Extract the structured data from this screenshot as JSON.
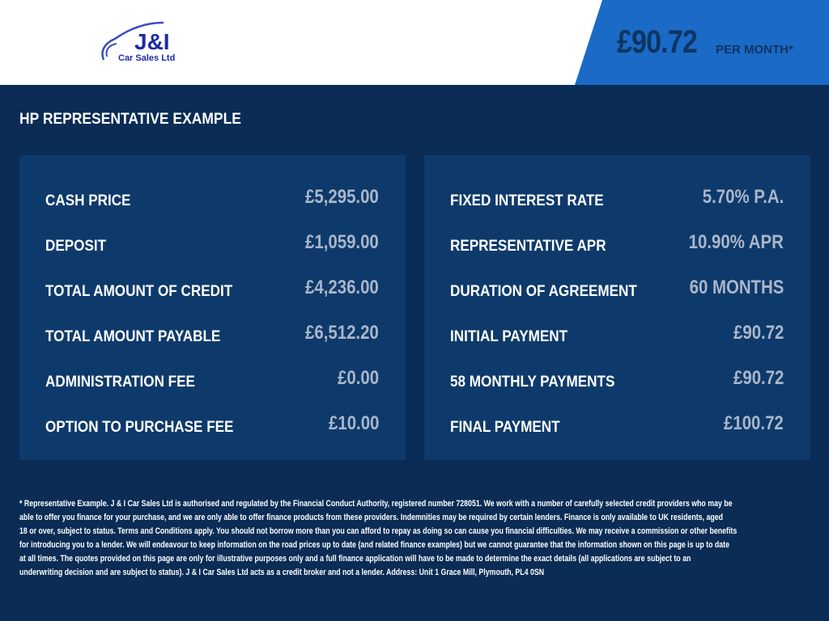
{
  "header": {
    "logo_text": "J&I",
    "logo_sub": "Car Sales Ltd",
    "monthly_price": "£90.72",
    "per_month": "PER MONTH*"
  },
  "colors": {
    "accent": "#1a6ac6",
    "background": "#0a2c55",
    "panel": "#0e3a6b"
  },
  "section_title": "HP REPRESENTATIVE EXAMPLE",
  "left": [
    {
      "label": "CASH PRICE",
      "value": "£5,295.00"
    },
    {
      "label": "DEPOSIT",
      "value": "£1,059.00"
    },
    {
      "label": "TOTAL AMOUNT OF CREDIT",
      "value": "£4,236.00"
    },
    {
      "label": "TOTAL AMOUNT PAYABLE",
      "value": "£6,512.20"
    },
    {
      "label": "ADMINISTRATION FEE",
      "value": "£0.00"
    },
    {
      "label": "OPTION TO PURCHASE FEE",
      "value": "£10.00"
    }
  ],
  "right": [
    {
      "label": "FIXED INTEREST RATE",
      "value": "5.70% P.A."
    },
    {
      "label": "REPRESENTATIVE APR",
      "value": "10.90% APR"
    },
    {
      "label": "DURATION OF AGREEMENT",
      "value": "60 MONTHS"
    },
    {
      "label": "INITIAL PAYMENT",
      "value": "£90.72"
    },
    {
      "label": "58 MONTHLY PAYMENTS",
      "value": "£90.72"
    },
    {
      "label": "FINAL PAYMENT",
      "value": "£100.72"
    }
  ],
  "disclaimer": [
    "* Representative Example. J & I Car Sales Ltd is authorised and regulated by the Financial Conduct Authority, registered number 728051. We work with a number of carefully selected credit providers who may be",
    "able to offer you finance for your purchase, and we are only able to offer finance products from these providers. Indemnities may be required by certain lenders. Finance is only available to UK residents, aged",
    "18 or over, subject to status. Terms and Conditions apply. You should not borrow more than you can afford to repay as doing so can cause you financial difficulties. We may receive a commission or other benefits",
    "for introducing you to a lender. We will endeavour to keep information on the road prices up to date (and related finance examples) but we cannot guarantee that the information shown on this page is up to date",
    "at all times. The quotes provided on this page are only for illustrative purposes only and a full finance application will have to be made to determine the exact details (all applications are subject to an",
    "underwriting decision and are subject to status). J & I Car Sales Ltd acts as a credit broker and not a lender. Address: Unit 1 Grace Mill, Plymouth, PL4 0SN"
  ]
}
